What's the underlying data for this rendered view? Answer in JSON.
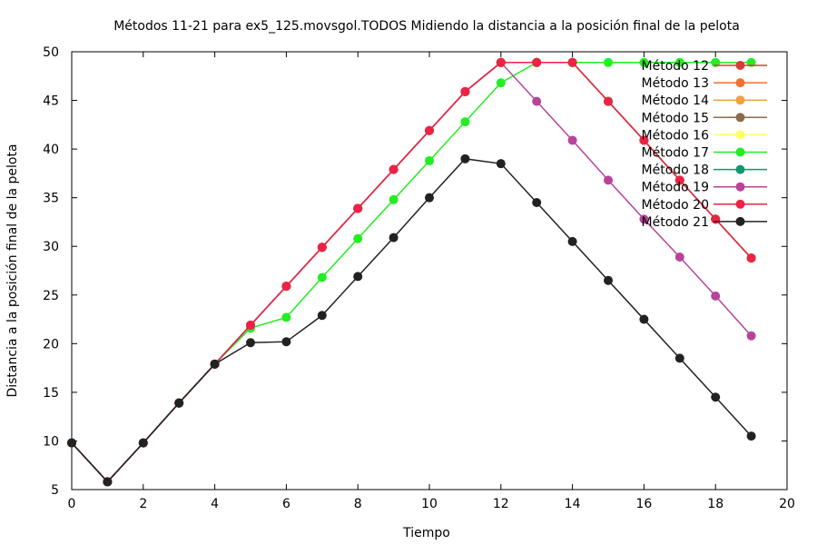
{
  "chart_data": {
    "type": "line",
    "title": "Métodos 11-21 para ex5_125.movsgol.TODOS Midiendo la distancia a la posición final de la pelota",
    "xlabel": "Tiempo",
    "ylabel": "Distancia a la posición final de la pelota",
    "xlim": [
      0,
      20
    ],
    "ylim": [
      5,
      50
    ],
    "xticks": [
      0,
      2,
      4,
      6,
      8,
      10,
      12,
      14,
      16,
      18,
      20
    ],
    "yticks": [
      5,
      10,
      15,
      20,
      25,
      30,
      35,
      40,
      45,
      50
    ],
    "grid": false,
    "legend_position": "top-right",
    "x": [
      0,
      1,
      2,
      3,
      4,
      5,
      6,
      7,
      8,
      9,
      10,
      11,
      12,
      13,
      14,
      15,
      16,
      17,
      18,
      19
    ],
    "series": [
      {
        "name": "Método 12",
        "color": "#d93b3b",
        "values": [
          9.8,
          5.8,
          9.8,
          13.9,
          17.9,
          21.9,
          25.9,
          29.9,
          33.9,
          37.9,
          41.9,
          45.9,
          48.9,
          48.9,
          48.9,
          44.9,
          40.9,
          36.8,
          32.8,
          28.8
        ]
      },
      {
        "name": "Método 13",
        "color": "#f07030",
        "values": [
          9.8,
          5.8,
          9.8,
          13.9,
          17.9,
          21.9,
          25.9,
          29.9,
          33.9,
          37.9,
          41.9,
          45.9,
          48.9,
          48.9,
          48.9,
          44.9,
          40.9,
          36.8,
          32.8,
          28.8
        ]
      },
      {
        "name": "Método 14",
        "color": "#f4a040",
        "values": [
          9.8,
          5.8,
          9.8,
          13.9,
          17.9,
          21.9,
          25.9,
          29.9,
          33.9,
          37.9,
          41.9,
          45.9,
          48.9,
          48.9,
          48.9,
          44.9,
          40.9,
          36.8,
          32.8,
          28.8
        ]
      },
      {
        "name": "Método 15",
        "color": "#8b6a4a",
        "values": [
          9.8,
          5.8,
          9.8,
          13.9,
          17.9,
          21.9,
          25.9,
          29.9,
          33.9,
          37.9,
          41.9,
          45.9,
          48.9,
          48.9,
          48.9,
          44.9,
          40.9,
          36.8,
          32.8,
          28.8
        ]
      },
      {
        "name": "Método 16",
        "color": "#ffff66",
        "values": [
          9.8,
          5.8,
          9.8,
          13.9,
          17.9,
          21.9,
          25.9,
          29.9,
          33.9,
          37.9,
          41.9,
          45.9,
          48.9,
          48.9,
          48.9,
          44.9,
          40.9,
          36.8,
          32.8,
          28.8
        ]
      },
      {
        "name": "Método 17",
        "color": "#22ee22",
        "values": [
          9.8,
          5.8,
          9.8,
          13.9,
          17.9,
          21.6,
          22.7,
          26.8,
          30.8,
          34.8,
          38.8,
          42.8,
          46.8,
          48.9,
          48.9,
          48.9,
          48.9,
          48.9,
          48.9,
          48.9
        ]
      },
      {
        "name": "Método 18",
        "color": "#109870",
        "values": [
          9.8,
          5.8,
          9.8,
          13.9,
          17.9,
          21.9,
          25.9,
          29.9,
          33.9,
          37.9,
          41.9,
          45.9,
          48.9,
          48.9,
          48.9,
          44.9,
          40.9,
          36.8,
          32.8,
          28.8
        ]
      },
      {
        "name": "Método 19",
        "color": "#b8449a",
        "values": [
          9.8,
          5.8,
          9.8,
          13.9,
          17.9,
          21.9,
          25.9,
          29.9,
          33.9,
          37.9,
          41.9,
          45.9,
          48.9,
          44.9,
          40.9,
          36.8,
          32.8,
          28.9,
          24.9,
          20.8
        ]
      },
      {
        "name": "Método 20",
        "color": "#ee2244",
        "values": [
          9.8,
          5.8,
          9.8,
          13.9,
          17.9,
          21.9,
          25.9,
          29.9,
          33.9,
          37.9,
          41.9,
          45.9,
          48.9,
          48.9,
          48.9,
          44.9,
          40.9,
          36.8,
          32.8,
          28.8
        ]
      },
      {
        "name": "Método 21",
        "color": "#222222",
        "values": [
          9.8,
          5.8,
          9.8,
          13.9,
          17.9,
          20.1,
          20.2,
          22.9,
          26.9,
          30.9,
          35.0,
          39.0,
          38.5,
          34.5,
          30.5,
          26.5,
          22.5,
          18.5,
          14.5,
          10.5
        ]
      }
    ]
  }
}
